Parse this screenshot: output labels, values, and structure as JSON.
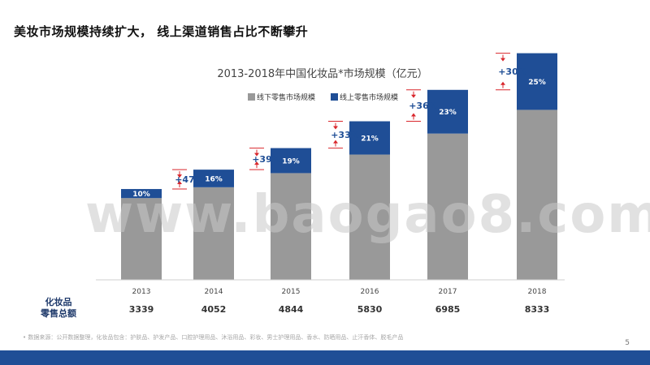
{
  "slide": {
    "title": "美妆市场规模持续扩大， 线上渠道销售占比不断攀升",
    "footnote": "•   数据来源：公开数据整理，化妆品包含：护肤品、护发产品、口腔护理用品、沐浴用品、彩妆、男士护理用品、香水、防晒用品、止汗香体、脱毛产品",
    "page_number": "5",
    "watermark": "www.baogao8.com"
  },
  "chart_data": {
    "type": "bar",
    "stacked": true,
    "title": "2013-2018年中国化妆品*市场规模（亿元）",
    "categories": [
      "2013",
      "2014",
      "2015",
      "2016",
      "2017",
      "2018"
    ],
    "row_label": "化妆品\n零售总额",
    "totals": [
      "3339",
      "4052",
      "4844",
      "5830",
      "6985",
      "8333"
    ],
    "online_share_labels": [
      "10%",
      "16%",
      "19%",
      "21%",
      "23%",
      "25%"
    ],
    "growth_labels": [
      "+47%",
      "+39%",
      "+33%",
      "+36%",
      "+30%"
    ],
    "series": [
      {
        "name": "线下零售市场规模",
        "color": "#999999",
        "values": [
          3005,
          3404,
          3924,
          4606,
          5378,
          6250
        ]
      },
      {
        "name": "线上零售市场规模",
        "color": "#1f4e96",
        "values": [
          334,
          648,
          920,
          1224,
          1607,
          2083
        ]
      }
    ],
    "ylim": [
      0,
      8500
    ],
    "grid": false,
    "legend_position": "top-center"
  }
}
